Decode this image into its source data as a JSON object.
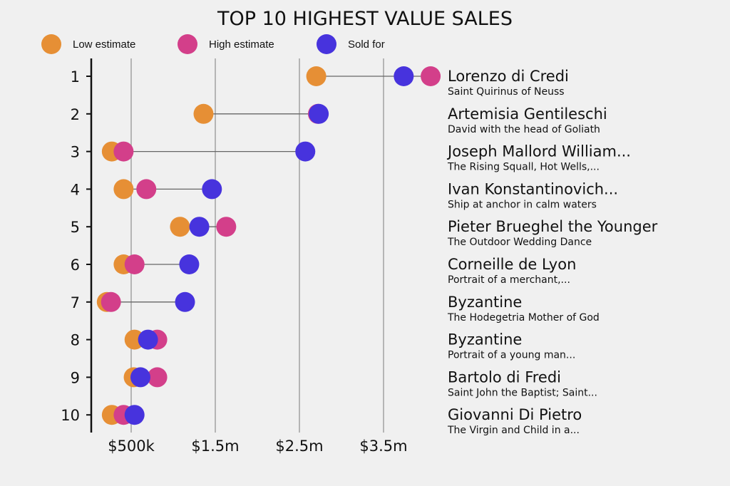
{
  "chart_data": {
    "type": "dumbbell",
    "title": "TOP 10 HIGHEST VALUE SALES",
    "xlabel": "",
    "ylabel": "",
    "xlim": [
      0,
      4.1
    ],
    "x_unit": "USD millions",
    "x_ticks": [
      {
        "value": 0.5,
        "label": "$500k"
      },
      {
        "value": 1.5,
        "label": "$1.5m"
      },
      {
        "value": 2.5,
        "label": "$2.5m"
      },
      {
        "value": 3.5,
        "label": "$3.5m"
      }
    ],
    "grid": "vertical",
    "legend": {
      "placement": "top-left",
      "entries": [
        {
          "key": "low",
          "label": "Low estimate",
          "color": "#e68f35"
        },
        {
          "key": "high",
          "label": "High estimate",
          "color": "#d33f8a"
        },
        {
          "key": "sold",
          "label": "Sold for",
          "color": "#4733dd"
        }
      ]
    },
    "categories": [
      "1",
      "2",
      "3",
      "4",
      "5",
      "6",
      "7",
      "8",
      "9",
      "10"
    ],
    "rows": [
      {
        "rank": "1",
        "artist": "Lorenzo di Credi",
        "work": "Saint Quirinus of Neuss",
        "low": 2.7,
        "high": 4.06,
        "sold": 3.74
      },
      {
        "rank": "2",
        "artist": "Artemisia Gentileschi",
        "work": "David with the head of Goliath",
        "low": 1.36,
        "high": 2.72,
        "sold": 2.73
      },
      {
        "rank": "3",
        "artist": "Joseph Mallord William...",
        "work": "The Rising Squall, Hot Wells,...",
        "low": 0.27,
        "high": 0.41,
        "sold": 2.57
      },
      {
        "rank": "4",
        "artist": "Ivan Konstantinovich...",
        "work": "Ship at anchor in calm waters",
        "low": 0.41,
        "high": 0.68,
        "sold": 1.46
      },
      {
        "rank": "5",
        "artist": "Pieter Brueghel the Younger",
        "work": "The Outdoor Wedding Dance",
        "low": 1.08,
        "high": 1.63,
        "sold": 1.31
      },
      {
        "rank": "6",
        "artist": "Corneille de Lyon",
        "work": "Portrait of a merchant,...",
        "low": 0.41,
        "high": 0.54,
        "sold": 1.19
      },
      {
        "rank": "7",
        "artist": "Byzantine",
        "work": "The Hodegetria Mother of God",
        "low": 0.21,
        "high": 0.26,
        "sold": 1.14
      },
      {
        "rank": "8",
        "artist": "Byzantine",
        "work": "Portrait of a young man...",
        "low": 0.54,
        "high": 0.81,
        "sold": 0.7
      },
      {
        "rank": "9",
        "artist": "Bartolo di Fredi",
        "work": "Saint John the Baptist; Saint...",
        "low": 0.53,
        "high": 0.81,
        "sold": 0.61
      },
      {
        "rank": "10",
        "artist": "Giovanni Di Pietro",
        "work": "The Virgin and Child in a...",
        "low": 0.27,
        "high": 0.41,
        "sold": 0.54
      }
    ]
  }
}
